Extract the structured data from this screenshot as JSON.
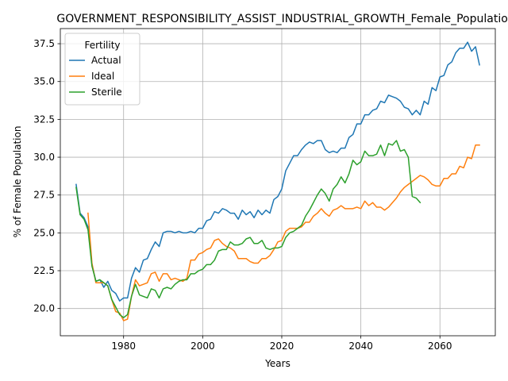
{
  "chart_data": {
    "type": "line",
    "title": "GOVERNMENT_RESPONSIBILITY_ASSIST_INDUSTRIAL_GROWTH_Female_Population",
    "xlabel": "Years",
    "ylabel": "% of Female Population",
    "xlim": [
      1964,
      2074
    ],
    "ylim": [
      18.2,
      38.5
    ],
    "xticks": [
      1980,
      2000,
      2020,
      2040,
      2060
    ],
    "yticks": [
      20.0,
      22.5,
      25.0,
      27.5,
      30.0,
      32.5,
      35.0,
      37.5
    ],
    "ytick_labels": [
      "20.0",
      "22.5",
      "25.0",
      "27.5",
      "30.0",
      "32.5",
      "35.0",
      "37.5"
    ],
    "grid": true,
    "legend": {
      "title": "Fertility",
      "position": "top-left"
    },
    "series": [
      {
        "name": "Actual",
        "color": "#1f77b4",
        "x": [
          1968,
          1969,
          1970,
          1971,
          1972,
          1973,
          1974,
          1975,
          1976,
          1977,
          1978,
          1979,
          1980,
          1981,
          1982,
          1983,
          1984,
          1985,
          1986,
          1987,
          1988,
          1989,
          1990,
          1991,
          1992,
          1993,
          1994,
          1995,
          1996,
          1997,
          1998,
          1999,
          2000,
          2001,
          2002,
          2003,
          2004,
          2005,
          2006,
          2007,
          2008,
          2009,
          2010,
          2011,
          2012,
          2013,
          2014,
          2015,
          2016,
          2017,
          2018,
          2019,
          2020,
          2021,
          2022,
          2023,
          2024,
          2025,
          2026,
          2027,
          2028,
          2029,
          2030,
          2031,
          2032,
          2033,
          2034,
          2035,
          2036,
          2037,
          2038,
          2039,
          2040,
          2041,
          2042,
          2043,
          2044,
          2045,
          2046,
          2047,
          2048,
          2049,
          2050,
          2051,
          2052,
          2053,
          2054,
          2055,
          2056,
          2057,
          2058,
          2059,
          2060,
          2061,
          2062,
          2063,
          2064,
          2065,
          2066,
          2067,
          2068,
          2069,
          2070
        ],
        "y": [
          28.2,
          26.3,
          26.0,
          25.4,
          22.9,
          21.8,
          21.9,
          21.4,
          21.8,
          21.2,
          21.0,
          20.5,
          20.7,
          20.7,
          22.0,
          22.7,
          22.4,
          23.2,
          23.3,
          23.9,
          24.4,
          24.1,
          25.0,
          25.1,
          25.1,
          25.0,
          25.1,
          25.0,
          25.0,
          25.1,
          25.0,
          25.3,
          25.3,
          25.8,
          25.9,
          26.4,
          26.3,
          26.6,
          26.5,
          26.3,
          26.3,
          25.9,
          26.5,
          26.2,
          26.4,
          26.0,
          26.5,
          26.2,
          26.5,
          26.3,
          27.2,
          27.4,
          27.9,
          29.1,
          29.6,
          30.1,
          30.1,
          30.5,
          30.8,
          31.0,
          30.9,
          31.1,
          31.1,
          30.5,
          30.3,
          30.4,
          30.3,
          30.6,
          30.6,
          31.3,
          31.5,
          32.2,
          32.2,
          32.8,
          32.8,
          33.1,
          33.2,
          33.7,
          33.6,
          34.1,
          34.0,
          33.9,
          33.7,
          33.3,
          33.2,
          32.8,
          33.1,
          32.8,
          33.7,
          33.5,
          34.6,
          34.4,
          35.3,
          35.4,
          36.1,
          36.3,
          36.9,
          37.2,
          37.2,
          37.6,
          37.0,
          37.3,
          36.1
        ]
      },
      {
        "name": "Ideal",
        "color": "#ff7f0e",
        "x": [
          1971,
          1972,
          1973,
          1974,
          1975,
          1976,
          1977,
          1978,
          1979,
          1980,
          1981,
          1982,
          1983,
          1984,
          1985,
          1986,
          1987,
          1988,
          1989,
          1990,
          1991,
          1992,
          1993,
          1994,
          1995,
          1996,
          1997,
          1998,
          1999,
          2000,
          2001,
          2002,
          2003,
          2004,
          2005,
          2006,
          2007,
          2008,
          2009,
          2010,
          2011,
          2012,
          2013,
          2014,
          2015,
          2016,
          2017,
          2018,
          2019,
          2020,
          2021,
          2022,
          2023,
          2024,
          2025,
          2026,
          2027,
          2028,
          2029,
          2030,
          2031,
          2032,
          2033,
          2034,
          2035,
          2036,
          2037,
          2038,
          2039,
          2040,
          2041,
          2042,
          2043,
          2044,
          2045,
          2046,
          2047,
          2048,
          2049,
          2050,
          2051,
          2052,
          2053,
          2054,
          2055,
          2056,
          2057,
          2058,
          2059,
          2060,
          2061,
          2062,
          2063,
          2064,
          2065,
          2066,
          2067,
          2068,
          2069,
          2070
        ],
        "y": [
          26.3,
          23.0,
          21.7,
          21.7,
          21.7,
          21.5,
          20.6,
          19.8,
          19.7,
          19.2,
          19.3,
          20.8,
          21.9,
          21.5,
          21.6,
          21.7,
          22.3,
          22.4,
          21.8,
          22.3,
          22.3,
          21.9,
          22.0,
          21.9,
          21.8,
          22.0,
          23.2,
          23.2,
          23.6,
          23.7,
          23.9,
          24.0,
          24.5,
          24.6,
          24.3,
          24.1,
          24.0,
          23.8,
          23.3,
          23.3,
          23.3,
          23.1,
          23.0,
          23.0,
          23.3,
          23.3,
          23.5,
          23.9,
          24.4,
          24.5,
          25.1,
          25.3,
          25.3,
          25.3,
          25.4,
          25.7,
          25.7,
          26.1,
          26.3,
          26.6,
          26.3,
          26.1,
          26.5,
          26.6,
          26.8,
          26.6,
          26.6,
          26.6,
          26.7,
          26.6,
          27.1,
          26.8,
          27.0,
          26.7,
          26.7,
          26.5,
          26.7,
          27.0,
          27.3,
          27.7,
          28.0,
          28.2,
          28.4,
          28.6,
          28.8,
          28.7,
          28.5,
          28.2,
          28.1,
          28.1,
          28.6,
          28.6,
          28.9,
          28.9,
          29.4,
          29.3,
          30.0,
          29.9,
          30.8,
          30.8
        ]
      },
      {
        "name": "Sterile",
        "color": "#2ca02c",
        "x": [
          1968,
          1969,
          1970,
          1971,
          1972,
          1973,
          1974,
          1975,
          1976,
          1977,
          1978,
          1979,
          1980,
          1981,
          1982,
          1983,
          1984,
          1985,
          1986,
          1987,
          1988,
          1989,
          1990,
          1991,
          1992,
          1993,
          1994,
          1995,
          1996,
          1997,
          1998,
          1999,
          2000,
          2001,
          2002,
          2003,
          2004,
          2005,
          2006,
          2007,
          2008,
          2009,
          2010,
          2011,
          2012,
          2013,
          2014,
          2015,
          2016,
          2017,
          2018,
          2019,
          2020,
          2021,
          2022,
          2023,
          2024,
          2025,
          2026,
          2027,
          2028,
          2029,
          2030,
          2031,
          2032,
          2033,
          2034,
          2035,
          2036,
          2037,
          2038,
          2039,
          2040,
          2041,
          2042,
          2043,
          2044,
          2045,
          2046,
          2047,
          2048,
          2049,
          2050,
          2051,
          2052,
          2053,
          2054,
          2055
        ],
        "y": [
          28.0,
          26.2,
          25.9,
          25.2,
          22.8,
          21.8,
          21.9,
          21.7,
          21.5,
          20.6,
          20.1,
          19.6,
          19.4,
          19.6,
          20.8,
          21.6,
          20.9,
          20.8,
          20.7,
          21.3,
          21.2,
          20.7,
          21.3,
          21.4,
          21.3,
          21.6,
          21.8,
          21.9,
          21.9,
          22.3,
          22.3,
          22.5,
          22.6,
          22.9,
          22.9,
          23.2,
          23.8,
          23.9,
          23.9,
          24.4,
          24.2,
          24.2,
          24.3,
          24.6,
          24.7,
          24.3,
          24.3,
          24.5,
          24.0,
          23.9,
          24.0,
          24.0,
          24.1,
          24.7,
          25.0,
          25.1,
          25.3,
          25.5,
          26.1,
          26.5,
          27.0,
          27.5,
          27.9,
          27.6,
          27.1,
          27.9,
          28.2,
          28.7,
          28.3,
          28.9,
          29.8,
          29.5,
          29.7,
          30.4,
          30.1,
          30.1,
          30.2,
          30.8,
          30.1,
          30.9,
          30.8,
          31.1,
          30.4,
          30.5,
          30.0,
          27.4,
          27.3,
          27.0
        ]
      }
    ]
  }
}
